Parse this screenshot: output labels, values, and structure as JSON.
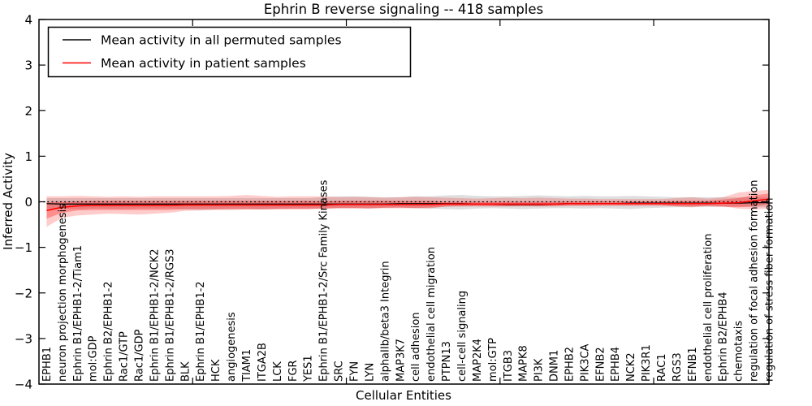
{
  "title": "Ephrin B reverse signaling -- 418 samples",
  "xlabel": "Cellular Entities",
  "ylabel": "Inferred Activity",
  "legend": {
    "items": [
      {
        "label": "Mean activity in all permuted samples",
        "color": "#000000"
      },
      {
        "label": "Mean activity in patient samples",
        "color": "#ff0000"
      }
    ]
  },
  "axes": {
    "y_tick_labels": [
      "4",
      "3",
      "2",
      "1",
      "0",
      "−1",
      "−2",
      "−3",
      "−4"
    ],
    "y_tick_values": [
      4,
      3,
      2,
      1,
      0,
      -1,
      -2,
      -3,
      -4
    ],
    "x_major_tick_values": [
      10,
      20,
      30,
      40
    ]
  },
  "chart_data": {
    "type": "line",
    "title": "Ephrin B reverse signaling -- 418 samples",
    "xlabel": "Cellular Entities",
    "ylabel": "Inferred Activity",
    "ylim": [
      -4,
      4
    ],
    "xlim": [
      0,
      47.5
    ],
    "grid": false,
    "legend_position": "upper left",
    "zero_reference_line": true,
    "categories": [
      "EPHB1",
      "neuron projection morphogenesis",
      "Ephrin B1/EPHB1-2/Tiam1",
      "mol:GDP",
      "Ephrin B2/EPHB1-2",
      "Rac1/GTP",
      "Rac1/GDP",
      "Ephrin B1/EPHB1-2/NCK2",
      "Ephrin B1/EPHB1-2/RGS3",
      "BLK",
      "Ephrin B1/EPHB1-2",
      "HCK",
      "angiogenesis",
      "TIAM1",
      "ITGA2B",
      "LCK",
      "FGR",
      "YES1",
      "Ephrin B1/EPHB1-2/Src Family Kinases",
      "SRC",
      "FYN",
      "LYN",
      "alphaIIb/beta3 Integrin",
      "MAP3K7",
      "cell adhesion",
      "endothelial cell migration",
      "PTPN13",
      "cell-cell signaling",
      "MAP2K4",
      "mol:GTP",
      "ITGB3",
      "MAPK8",
      "PI3K",
      "DNM1",
      "EPHB2",
      "PIK3CA",
      "EFNB2",
      "EPHB4",
      "NCK2",
      "PIK3R1",
      "RAC1",
      "RGS3",
      "EFNB1",
      "endothelial cell proliferation",
      "Ephrin B2/EPHB4",
      "chemotaxis",
      "regulation of focal adhesion formation",
      "regulation of stress fiber formation"
    ],
    "series": [
      {
        "name": "Mean activity in all permuted samples",
        "color": "#000000",
        "values": [
          -0.04,
          -0.05,
          -0.05,
          -0.05,
          -0.05,
          -0.05,
          -0.05,
          -0.05,
          -0.05,
          -0.05,
          -0.05,
          -0.05,
          -0.05,
          -0.05,
          -0.05,
          -0.05,
          -0.05,
          -0.05,
          -0.05,
          -0.05,
          -0.05,
          -0.05,
          -0.05,
          -0.04,
          -0.04,
          -0.04,
          -0.04,
          -0.04,
          -0.05,
          -0.05,
          -0.06,
          -0.06,
          -0.06,
          -0.05,
          -0.04,
          -0.04,
          -0.04,
          -0.04,
          -0.03,
          -0.03,
          -0.03,
          -0.03,
          -0.03,
          -0.03,
          -0.03,
          -0.03,
          -0.02,
          -0.02
        ]
      },
      {
        "name": "Mean activity in patient samples",
        "color": "#ff0000",
        "values": [
          -0.19,
          -0.12,
          -0.09,
          -0.08,
          -0.08,
          -0.08,
          -0.08,
          -0.08,
          -0.08,
          -0.07,
          -0.07,
          -0.07,
          -0.07,
          -0.07,
          -0.07,
          -0.07,
          -0.07,
          -0.07,
          -0.07,
          -0.06,
          -0.06,
          -0.06,
          -0.06,
          -0.06,
          -0.06,
          -0.06,
          -0.05,
          -0.05,
          -0.05,
          -0.05,
          -0.05,
          -0.05,
          -0.05,
          -0.05,
          -0.04,
          -0.04,
          -0.04,
          -0.04,
          -0.04,
          -0.04,
          -0.04,
          -0.04,
          -0.04,
          -0.04,
          -0.03,
          -0.02,
          0.02,
          0.06
        ]
      }
    ],
    "bands": [
      {
        "name": "permuted samples range",
        "color": "#000000",
        "alpha": 0.13,
        "upper": [
          0.08,
          0.08,
          0.08,
          0.08,
          0.08,
          0.08,
          0.08,
          0.08,
          0.08,
          0.08,
          0.08,
          0.08,
          0.08,
          0.08,
          0.08,
          0.08,
          0.08,
          0.08,
          0.1,
          0.12,
          0.12,
          0.11,
          0.1,
          0.1,
          0.12,
          0.12,
          0.14,
          0.15,
          0.13,
          0.12,
          0.12,
          0.13,
          0.14,
          0.13,
          0.12,
          0.13,
          0.12,
          0.12,
          0.13,
          0.12,
          0.11,
          0.1,
          0.1,
          0.1,
          0.1,
          0.1,
          0.1,
          0.1
        ],
        "lower": [
          -0.15,
          -0.15,
          -0.16,
          -0.15,
          -0.15,
          -0.16,
          -0.15,
          -0.15,
          -0.15,
          -0.17,
          -0.18,
          -0.17,
          -0.16,
          -0.16,
          -0.17,
          -0.16,
          -0.15,
          -0.15,
          -0.15,
          -0.14,
          -0.14,
          -0.15,
          -0.13,
          -0.13,
          -0.14,
          -0.15,
          -0.16,
          -0.17,
          -0.15,
          -0.14,
          -0.15,
          -0.16,
          -0.15,
          -0.14,
          -0.14,
          -0.15,
          -0.14,
          -0.15,
          -0.16,
          -0.14,
          -0.13,
          -0.12,
          -0.12,
          -0.11,
          -0.11,
          -0.1,
          -0.12,
          -0.12
        ]
      },
      {
        "name": "patient samples outer range",
        "color": "#ff0000",
        "alpha": 0.2,
        "upper": [
          0.12,
          0.12,
          0.13,
          0.12,
          0.11,
          0.12,
          0.11,
          0.12,
          0.12,
          0.12,
          0.12,
          0.12,
          0.13,
          0.15,
          0.13,
          0.11,
          0.12,
          0.12,
          0.12,
          0.1,
          0.11,
          0.1,
          0.09,
          0.1,
          0.11,
          0.1,
          0.09,
          0.08,
          0.07,
          0.08,
          0.09,
          0.08,
          0.09,
          0.08,
          0.07,
          0.07,
          0.06,
          0.06,
          0.06,
          0.06,
          0.06,
          0.08,
          0.1,
          0.07,
          0.1,
          0.2,
          0.24,
          0.26
        ],
        "lower": [
          -0.55,
          -0.35,
          -0.3,
          -0.28,
          -0.26,
          -0.27,
          -0.28,
          -0.26,
          -0.24,
          -0.2,
          -0.19,
          -0.18,
          -0.18,
          -0.17,
          -0.17,
          -0.16,
          -0.16,
          -0.16,
          -0.15,
          -0.14,
          -0.14,
          -0.15,
          -0.13,
          -0.12,
          -0.14,
          -0.12,
          -0.11,
          -0.1,
          -0.09,
          -0.1,
          -0.1,
          -0.09,
          -0.1,
          -0.09,
          -0.08,
          -0.08,
          -0.07,
          -0.07,
          -0.07,
          -0.06,
          -0.07,
          -0.1,
          -0.12,
          -0.08,
          -0.1,
          -0.15,
          -0.17,
          -0.15
        ]
      },
      {
        "name": "patient samples inner range",
        "color": "#ff0000",
        "alpha": 0.3,
        "upper": [
          -0.01,
          0.0,
          0.01,
          0.02,
          0.02,
          0.02,
          0.02,
          0.02,
          0.02,
          0.02,
          0.02,
          0.02,
          0.02,
          0.02,
          0.02,
          0.02,
          0.02,
          0.02,
          0.01,
          0.02,
          0.02,
          0.02,
          0.02,
          0.02,
          0.02,
          0.02,
          0.0,
          0.0,
          0.0,
          0.0,
          0.0,
          0.0,
          0.0,
          0.0,
          0.01,
          0.01,
          0.01,
          0.01,
          0.01,
          0.01,
          0.01,
          0.02,
          0.02,
          0.02,
          0.05,
          0.08,
          0.14,
          0.18
        ],
        "lower": [
          -0.37,
          -0.24,
          -0.19,
          -0.18,
          -0.18,
          -0.18,
          -0.18,
          -0.18,
          -0.18,
          -0.16,
          -0.16,
          -0.16,
          -0.16,
          -0.16,
          -0.16,
          -0.16,
          -0.16,
          -0.16,
          -0.15,
          -0.14,
          -0.14,
          -0.14,
          -0.14,
          -0.14,
          -0.14,
          -0.14,
          -0.1,
          -0.1,
          -0.1,
          -0.1,
          -0.1,
          -0.1,
          -0.1,
          -0.1,
          -0.09,
          -0.09,
          -0.09,
          -0.09,
          -0.09,
          -0.09,
          -0.09,
          -0.1,
          -0.1,
          -0.1,
          -0.11,
          -0.12,
          -0.1,
          -0.06
        ]
      }
    ]
  }
}
